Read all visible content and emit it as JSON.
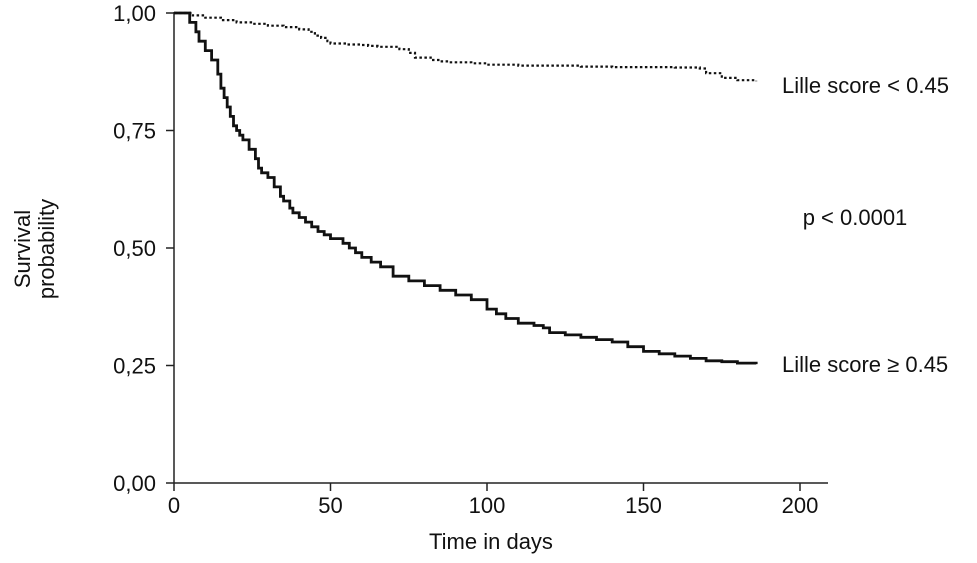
{
  "chart_data": {
    "type": "line",
    "title": "",
    "xlabel": "Time in days",
    "ylabel": [
      "Survival",
      "probability"
    ],
    "xlim": [
      0,
      200
    ],
    "ylim": [
      0,
      1
    ],
    "x_ticks": [
      0,
      50,
      100,
      150,
      200
    ],
    "x_tick_labels": [
      "0",
      "50",
      "100",
      "150",
      "200"
    ],
    "y_ticks": [
      0,
      0.25,
      0.5,
      0.75,
      1
    ],
    "y_tick_labels": [
      "0,00",
      "0,25",
      "0,50",
      "0,75",
      "1,00"
    ],
    "grid": false,
    "step": true,
    "p_value_text": "p < 0.0001",
    "series": [
      {
        "name": "Lille score < 0.45",
        "line_style": "dotted",
        "color": "#111111",
        "x": [
          0,
          6,
          10,
          15,
          20,
          25,
          30,
          35,
          40,
          43,
          45,
          47,
          49,
          50,
          55,
          60,
          62,
          65,
          72,
          75,
          77,
          82,
          85,
          88,
          95,
          100,
          110,
          120,
          130,
          140,
          150,
          160,
          168,
          170,
          175,
          180,
          186
        ],
        "y": [
          1.0,
          0.995,
          0.99,
          0.985,
          0.98,
          0.977,
          0.973,
          0.97,
          0.965,
          0.96,
          0.952,
          0.947,
          0.94,
          0.935,
          0.933,
          0.932,
          0.93,
          0.928,
          0.923,
          0.915,
          0.905,
          0.9,
          0.897,
          0.895,
          0.893,
          0.89,
          0.888,
          0.888,
          0.886,
          0.885,
          0.885,
          0.884,
          0.882,
          0.872,
          0.862,
          0.857,
          0.855
        ]
      },
      {
        "name": "Lille score ≥ 0.45",
        "line_style": "solid",
        "color": "#111111",
        "x": [
          0,
          5,
          7,
          8,
          10,
          12,
          14,
          15,
          16,
          17,
          18,
          19,
          20,
          21,
          22,
          24,
          26,
          27,
          28,
          30,
          32,
          34,
          35,
          37,
          38,
          40,
          42,
          44,
          46,
          48,
          50,
          54,
          56,
          58,
          60,
          63,
          66,
          70,
          75,
          80,
          85,
          90,
          95,
          100,
          103,
          106,
          110,
          115,
          118,
          120,
          125,
          130,
          135,
          140,
          145,
          150,
          155,
          160,
          165,
          170,
          175,
          180,
          186
        ],
        "y": [
          1.0,
          0.98,
          0.96,
          0.94,
          0.92,
          0.9,
          0.87,
          0.84,
          0.82,
          0.8,
          0.78,
          0.76,
          0.75,
          0.74,
          0.73,
          0.71,
          0.69,
          0.67,
          0.66,
          0.65,
          0.63,
          0.61,
          0.6,
          0.585,
          0.575,
          0.565,
          0.555,
          0.545,
          0.535,
          0.528,
          0.52,
          0.51,
          0.5,
          0.49,
          0.48,
          0.47,
          0.46,
          0.44,
          0.43,
          0.42,
          0.41,
          0.4,
          0.39,
          0.37,
          0.36,
          0.35,
          0.34,
          0.335,
          0.33,
          0.32,
          0.315,
          0.31,
          0.305,
          0.3,
          0.29,
          0.28,
          0.275,
          0.27,
          0.265,
          0.26,
          0.258,
          0.255,
          0.253
        ]
      }
    ],
    "series_labels": [
      "Lille score < 0.45",
      "Lille score ≥ 0.45"
    ]
  }
}
